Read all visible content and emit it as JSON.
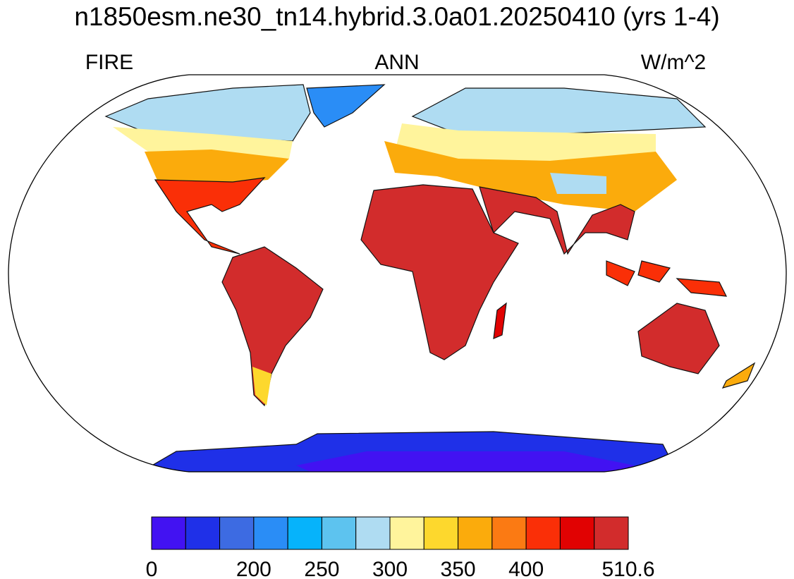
{
  "map": {
    "title": "n1850esm.ne30_tn14.hybrid.3.0a01.20250410 (yrs 1-4)",
    "left_label": "FIRE",
    "center_label": "ANN",
    "right_label": "W/m^2"
  },
  "colorbar": {
    "colors": [
      "#4212f2",
      "#1f30e8",
      "#3d6be2",
      "#2a8df6",
      "#06b3fb",
      "#5dc3ef",
      "#afdcf2",
      "#fff49c",
      "#fdd82d",
      "#fbab0c",
      "#fb7a13",
      "#fa2f07",
      "#e10202",
      "#d22c2c"
    ],
    "boundary_labels": [
      0,
      null,
      null,
      200,
      null,
      250,
      null,
      300,
      null,
      350,
      null,
      400,
      null,
      null,
      510.6
    ]
  }
}
